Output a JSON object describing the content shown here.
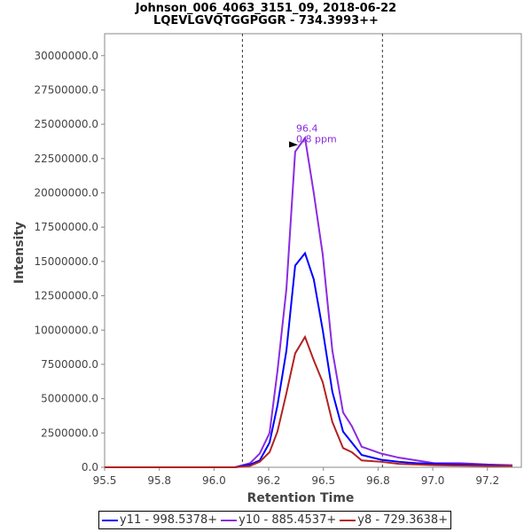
{
  "chart_data": {
    "type": "line",
    "title": [
      "Johnson_006_4063_3151_09, 2018-06-22",
      "LQEVLGVQTGGPGGR - 734.3993++"
    ],
    "xlabel": "Retention Time",
    "ylabel": "Intensity",
    "xlim": [
      95.5,
      97.405
    ],
    "ylim": [
      0,
      31600000
    ],
    "xticks": [
      95.5,
      95.75,
      96.0,
      96.25,
      96.5,
      96.75,
      97.0,
      97.25
    ],
    "xtick_labels": [
      "95.5",
      "95.8",
      "96.0",
      "96.2",
      "96.5",
      "96.8",
      "97.0",
      "97.2"
    ],
    "yticks": [
      0,
      2500000,
      5000000,
      7500000,
      10000000,
      12500000,
      15000000,
      17500000,
      20000000,
      22500000,
      25000000,
      27500000,
      30000000
    ],
    "ytick_labels": [
      "0.0",
      "2500000.0",
      "5000000.0",
      "7500000.0",
      "10000000.0",
      "12500000.0",
      "15000000.0",
      "17500000.0",
      "20000000.0",
      "22500000.0",
      "25000000.0",
      "27500000.0",
      "30000000.0"
    ],
    "vlines": [
      96.13,
      96.77
    ],
    "x": [
      95.5,
      96.096,
      96.165,
      96.209,
      96.254,
      96.29,
      96.331,
      96.371,
      96.416,
      96.456,
      96.497,
      96.541,
      96.59,
      96.63,
      96.675,
      96.764,
      96.845,
      96.926,
      97.007,
      97.129,
      97.25,
      97.364
    ],
    "series": [
      {
        "name": "y11 - 998.5378+",
        "color": "#0000ff",
        "values": [
          0,
          0,
          200000,
          500000,
          1800000,
          4500000,
          8500000,
          14700000,
          15600000,
          13700000,
          10000000,
          5500000,
          2600000,
          1800000,
          900000,
          550000,
          400000,
          300000,
          250000,
          200000,
          150000,
          100000
        ]
      },
      {
        "name": "y10 - 885.4537+",
        "color": "#8a2be2",
        "values": [
          0,
          0,
          300000,
          1000000,
          2500000,
          7000000,
          13000000,
          23000000,
          24000000,
          20000000,
          15500000,
          8500000,
          4000000,
          3000000,
          1500000,
          1000000,
          700000,
          500000,
          300000,
          300000,
          200000,
          150000
        ]
      },
      {
        "name": "y8 - 729.3638+",
        "color": "#b22222",
        "values": [
          0,
          0,
          100000,
          400000,
          1100000,
          2600000,
          5400000,
          8300000,
          9500000,
          7800000,
          6200000,
          3300000,
          1400000,
          1100000,
          500000,
          400000,
          250000,
          200000,
          150000,
          120000,
          100000,
          100000
        ]
      }
    ],
    "annotation": {
      "x": 96.4,
      "y": 23500000,
      "lines": [
        "96.4",
        "0.8 ppm"
      ],
      "color": "#8a2be2"
    },
    "legend_position": "bottom"
  }
}
